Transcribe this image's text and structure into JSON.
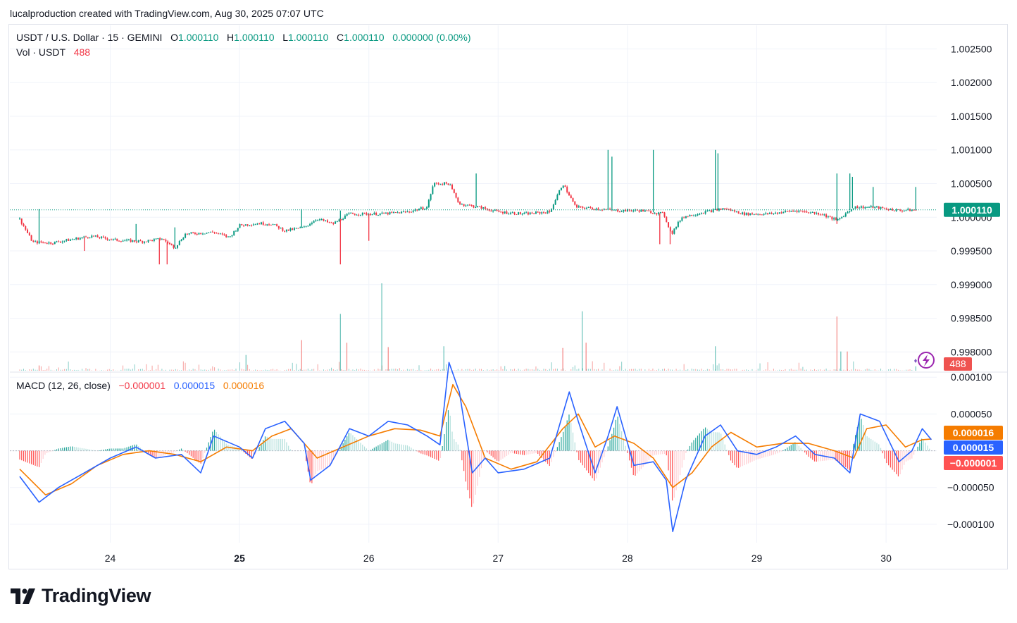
{
  "caption": "lucalproduction created with TradingView.com, Aug 30, 2025 07:07 UTC",
  "legend": {
    "symbol": "USDT / U.S. Dollar · 15 · GEMINI",
    "o_label": "O",
    "o_value": "1.000110",
    "h_label": "H",
    "h_value": "1.000110",
    "l_label": "L",
    "l_value": "1.000110",
    "c_label": "C",
    "c_value": "1.000110",
    "change": "0.000000 (0.00%)",
    "vol_label": "Vol · USDT",
    "vol_value": "488",
    "macd_label": "MACD (12, 26, close)",
    "macd_hist": "−0.000001",
    "macd_line": "0.000015",
    "macd_signal": "0.000016"
  },
  "price_badge": "1.000110",
  "volume_badge": "488",
  "macd_badges": {
    "signal": "0.000016",
    "macd": "0.000015",
    "hist": "−0.000001"
  },
  "brand": "TradingView",
  "colors": {
    "up": "#089981",
    "down": "#f23645",
    "macd": "#2962ff",
    "signal": "#f57c00",
    "grid": "#f0f3fa"
  },
  "chart_data": [
    {
      "type": "candlestick",
      "title": "USDT / U.S. Dollar · 15 · GEMINI",
      "x_ticks": [
        "24",
        "25",
        "26",
        "27",
        "28",
        "29",
        "30"
      ],
      "y_ticks": [
        "1.002500",
        "1.002000",
        "1.001500",
        "1.001000",
        "1.000500",
        "1.000000",
        "0.999500",
        "0.999000",
        "0.998500",
        "0.998000"
      ],
      "ylim": [
        0.9977,
        1.00285
      ],
      "last_price": 1.00011,
      "price_path": [
        [
          23.3,
          0.99997
        ],
        [
          23.4,
          0.99963
        ],
        [
          23.55,
          0.99962
        ],
        [
          23.7,
          0.99967
        ],
        [
          23.85,
          0.99972
        ],
        [
          24.05,
          0.99966
        ],
        [
          24.25,
          0.99964
        ],
        [
          24.4,
          0.99968
        ],
        [
          24.5,
          0.99955
        ],
        [
          24.58,
          0.99975
        ],
        [
          24.8,
          0.99978
        ],
        [
          24.92,
          0.9997
        ],
        [
          25.0,
          0.99988
        ],
        [
          25.15,
          0.99991
        ],
        [
          25.25,
          0.9999
        ],
        [
          25.35,
          0.9998
        ],
        [
          25.5,
          0.99985
        ],
        [
          25.6,
          0.99998
        ],
        [
          25.72,
          0.9999
        ],
        [
          25.85,
          1.00005
        ],
        [
          26.1,
          1.00005
        ],
        [
          26.3,
          1.00008
        ],
        [
          26.45,
          1.00015
        ],
        [
          26.5,
          1.0005
        ],
        [
          26.62,
          1.0005
        ],
        [
          26.7,
          1.0002
        ],
        [
          26.85,
          1.00015
        ],
        [
          27.0,
          1.00008
        ],
        [
          27.2,
          1.00005
        ],
        [
          27.4,
          1.00008
        ],
        [
          27.5,
          1.0005
        ],
        [
          27.6,
          1.00015
        ],
        [
          27.75,
          1.00013
        ],
        [
          27.9,
          1.0001
        ],
        [
          28.1,
          1.0001
        ],
        [
          28.28,
          1.00005
        ],
        [
          28.34,
          0.99975
        ],
        [
          28.42,
          1.0
        ],
        [
          28.6,
          1.00008
        ],
        [
          28.75,
          1.00013
        ],
        [
          28.9,
          1.00005
        ],
        [
          29.1,
          1.00005
        ],
        [
          29.3,
          1.0001
        ],
        [
          29.5,
          1.00005
        ],
        [
          29.62,
          0.99995
        ],
        [
          29.75,
          1.00015
        ],
        [
          29.9,
          1.00015
        ],
        [
          30.1,
          1.0001
        ],
        [
          30.23,
          1.00011
        ]
      ],
      "spikes_high": [
        [
          23.45,
          1.00012
        ],
        [
          24.2,
          0.9999
        ],
        [
          24.5,
          0.99985
        ],
        [
          25.48,
          1.00012
        ],
        [
          25.78,
          1.0001
        ],
        [
          26.58,
          1.0005
        ],
        [
          26.83,
          1.00065
        ],
        [
          27.85,
          1.001
        ],
        [
          27.88,
          1.0009
        ],
        [
          28.2,
          1.001
        ],
        [
          28.68,
          1.001
        ],
        [
          28.7,
          1.00095
        ],
        [
          29.62,
          1.00065
        ],
        [
          29.72,
          1.00065
        ],
        [
          29.74,
          1.0006
        ],
        [
          29.9,
          1.00045
        ],
        [
          30.23,
          1.00045
        ]
      ],
      "spikes_low": [
        [
          23.8,
          0.9995
        ],
        [
          24.38,
          0.9993
        ],
        [
          24.44,
          0.9993
        ],
        [
          25.78,
          0.9993
        ],
        [
          26.0,
          0.99965
        ],
        [
          28.25,
          0.9996
        ],
        [
          28.33,
          0.9996
        ],
        [
          29.62,
          0.9999
        ]
      ]
    },
    {
      "type": "bar",
      "title": "Vol · USDT",
      "last_value": 488,
      "spikes": [
        [
          23.45,
          0.06
        ],
        [
          25.05,
          0.18
        ],
        [
          25.48,
          0.35
        ],
        [
          25.78,
          0.65
        ],
        [
          25.83,
          0.32
        ],
        [
          26.1,
          1.0
        ],
        [
          26.15,
          0.27
        ],
        [
          26.58,
          0.28
        ],
        [
          27.5,
          0.26
        ],
        [
          27.65,
          0.68
        ],
        [
          27.68,
          0.32
        ],
        [
          28.68,
          0.28
        ],
        [
          29.62,
          0.62
        ],
        [
          29.65,
          0.22
        ],
        [
          29.7,
          0.22
        ],
        [
          30.23,
          0.05
        ]
      ]
    },
    {
      "type": "line",
      "title": "MACD (12, 26, close)",
      "y_ticks": [
        "0.000100",
        "0.000050",
        "0.000000",
        "−0.000050",
        "−0.000100"
      ],
      "ylim": [
        -0.000125,
        0.000105
      ],
      "series": [
        {
          "name": "MACD",
          "values": [
            [
              23.3,
              -3.5e-05
            ],
            [
              23.45,
              -7e-05
            ],
            [
              23.6,
              -5e-05
            ],
            [
              23.8,
              -3e-05
            ],
            [
              24.0,
              -1e-05
            ],
            [
              24.2,
              5e-06
            ],
            [
              24.35,
              -1e-05
            ],
            [
              24.55,
              -5e-06
            ],
            [
              24.7,
              -3e-05
            ],
            [
              24.8,
              2e-05
            ],
            [
              25.0,
              5e-06
            ],
            [
              25.1,
              -1e-05
            ],
            [
              25.2,
              3e-05
            ],
            [
              25.35,
              4e-05
            ],
            [
              25.5,
              1e-05
            ],
            [
              25.55,
              -4e-05
            ],
            [
              25.7,
              -2e-05
            ],
            [
              25.85,
              3e-05
            ],
            [
              26.0,
              2e-05
            ],
            [
              26.15,
              4e-05
            ],
            [
              26.3,
              3.5e-05
            ],
            [
              26.45,
              2e-05
            ],
            [
              26.55,
              8e-06
            ],
            [
              26.62,
              0.00012
            ],
            [
              26.7,
              8e-05
            ],
            [
              26.8,
              -3e-05
            ],
            [
              26.9,
              -1e-05
            ],
            [
              27.0,
              -3e-05
            ],
            [
              27.2,
              -2.5e-05
            ],
            [
              27.4,
              -1e-05
            ],
            [
              27.55,
              8e-05
            ],
            [
              27.62,
              4e-05
            ],
            [
              27.75,
              -3e-05
            ],
            [
              27.85,
              2e-05
            ],
            [
              27.92,
              6e-05
            ],
            [
              28.05,
              -2e-05
            ],
            [
              28.2,
              -1.5e-05
            ],
            [
              28.3,
              -4e-05
            ],
            [
              28.35,
              -0.00011
            ],
            [
              28.45,
              -4e-05
            ],
            [
              28.6,
              2e-05
            ],
            [
              28.72,
              3.5e-05
            ],
            [
              28.85,
              0.0
            ],
            [
              29.0,
              -5e-06
            ],
            [
              29.15,
              5e-06
            ],
            [
              29.3,
              2e-05
            ],
            [
              29.45,
              -5e-06
            ],
            [
              29.6,
              -1e-05
            ],
            [
              29.72,
              -3e-05
            ],
            [
              29.8,
              5e-05
            ],
            [
              29.95,
              4e-05
            ],
            [
              30.1,
              -1.5e-05
            ],
            [
              30.2,
              0.0
            ],
            [
              30.28,
              3e-05
            ],
            [
              30.35,
              1.5e-05
            ]
          ]
        },
        {
          "name": "Signal",
          "values": [
            [
              23.3,
              -2.5e-05
            ],
            [
              23.5,
              -6e-05
            ],
            [
              23.7,
              -4.5e-05
            ],
            [
              23.9,
              -2e-05
            ],
            [
              24.1,
              -5e-06
            ],
            [
              24.3,
              0.0
            ],
            [
              24.5,
              -5e-06
            ],
            [
              24.7,
              -1.5e-05
            ],
            [
              24.9,
              5e-06
            ],
            [
              25.1,
              0.0
            ],
            [
              25.25,
              2e-05
            ],
            [
              25.4,
              3e-05
            ],
            [
              25.6,
              -1e-05
            ],
            [
              25.8,
              5e-06
            ],
            [
              26.0,
              2e-05
            ],
            [
              26.2,
              3e-05
            ],
            [
              26.4,
              2.8e-05
            ],
            [
              26.55,
              2e-05
            ],
            [
              26.65,
              9e-05
            ],
            [
              26.75,
              6e-05
            ],
            [
              26.9,
              -1e-05
            ],
            [
              27.1,
              -2.5e-05
            ],
            [
              27.3,
              -1.5e-05
            ],
            [
              27.5,
              3e-05
            ],
            [
              27.62,
              5e-05
            ],
            [
              27.75,
              5e-06
            ],
            [
              27.9,
              2e-05
            ],
            [
              28.05,
              1e-05
            ],
            [
              28.2,
              -1e-05
            ],
            [
              28.35,
              -5e-05
            ],
            [
              28.5,
              -3e-05
            ],
            [
              28.65,
              5e-06
            ],
            [
              28.8,
              2.5e-05
            ],
            [
              29.0,
              5e-06
            ],
            [
              29.2,
              1e-05
            ],
            [
              29.4,
              1e-05
            ],
            [
              29.6,
              0.0
            ],
            [
              29.75,
              -1e-05
            ],
            [
              29.85,
              3e-05
            ],
            [
              30.0,
              3.5e-05
            ],
            [
              30.15,
              5e-06
            ],
            [
              30.28,
              1.5e-05
            ],
            [
              30.35,
              1.6e-05
            ]
          ]
        }
      ],
      "last_values": {
        "macd": 1.5e-05,
        "signal": 1.6e-05,
        "histogram": -1e-06
      }
    }
  ]
}
